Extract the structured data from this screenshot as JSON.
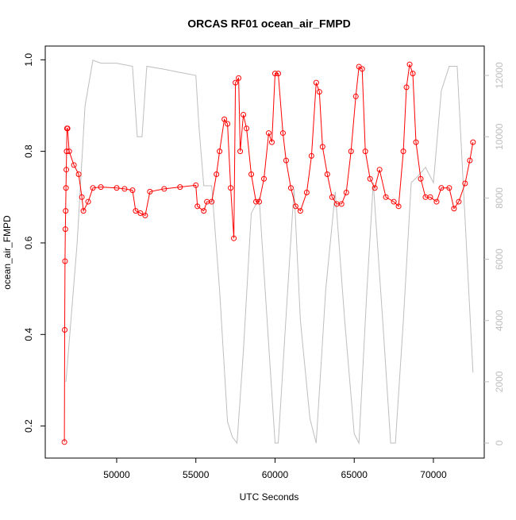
{
  "chart_data": {
    "type": "line",
    "title": "ORCAS RF01 ocean_air_FMPD",
    "x_label": "UTC Seconds",
    "y_label": "ocean_air_FMPD",
    "xlim": [
      45490,
      73210
    ],
    "ylim": [
      0.13,
      1.03
    ],
    "y2lim": [
      -490,
      12960
    ],
    "xticks": [
      50000,
      55000,
      60000,
      65000,
      70000
    ],
    "yticks": [
      0.2,
      0.4,
      0.6,
      0.8,
      {
        "value": 1,
        "label": "1.0"
      }
    ],
    "y2ticks": [
      0,
      2000,
      4000,
      6000,
      8000,
      10000,
      12000
    ],
    "series": [
      {
        "color": "#bebebe",
        "axis": "y2",
        "marker": "none",
        "x": [
          46800,
          47500,
          48000,
          48500,
          49000,
          50000,
          51000,
          51300,
          51600,
          51900,
          53000,
          54000,
          55000,
          55200,
          55500,
          56000,
          56500,
          57000,
          57300,
          57600,
          58000,
          58500,
          59000,
          59500,
          60000,
          60200,
          60800,
          61200,
          61600,
          62200,
          62600,
          63200,
          63800,
          64400,
          65000,
          65300,
          65800,
          66200,
          66800,
          67300,
          67600,
          68100,
          68600,
          69000,
          69500,
          70000,
          70500,
          71000,
          71500,
          72500
        ],
        "values": [
          2000,
          6500,
          11000,
          12500,
          12400,
          12400,
          12300,
          10000,
          10000,
          12300,
          12200,
          12100,
          12000,
          10300,
          8400,
          8400,
          5000,
          700,
          200,
          0,
          3000,
          7500,
          8000,
          4000,
          0,
          0,
          5000,
          8300,
          4000,
          800,
          0,
          5000,
          8200,
          4000,
          300,
          0,
          5000,
          8500,
          4000,
          0,
          0,
          4000,
          8500,
          8700,
          9000,
          8500,
          11500,
          12300,
          12300,
          2300
        ]
      },
      {
        "color": "#ff0000",
        "marker": "circle",
        "x": [
          46700,
          46720,
          46740,
          46760,
          46780,
          46800,
          46820,
          46840,
          46860,
          46900,
          47000,
          47300,
          47600,
          47800,
          47900,
          48200,
          48500,
          49000,
          50000,
          50500,
          51000,
          51200,
          51500,
          51800,
          52100,
          53000,
          54000,
          55000,
          55100,
          55500,
          55700,
          56000,
          56300,
          56500,
          56800,
          57000,
          57200,
          57400,
          57500,
          57700,
          57800,
          58000,
          58200,
          58500,
          58800,
          59000,
          59300,
          59600,
          59800,
          60000,
          60200,
          60500,
          60700,
          61000,
          61300,
          61600,
          62000,
          62300,
          62600,
          62800,
          63000,
          63300,
          63600,
          63900,
          64200,
          64500,
          64800,
          65100,
          65300,
          65500,
          65700,
          66000,
          66300,
          66600,
          67000,
          67500,
          67800,
          68100,
          68300,
          68500,
          68700,
          68900,
          69200,
          69500,
          69800,
          70200,
          70500,
          71000,
          71300,
          71600,
          72000,
          72300,
          72500
        ],
        "values": [
          0.165,
          0.41,
          0.56,
          0.63,
          0.67,
          0.72,
          0.76,
          0.8,
          0.85,
          0.85,
          0.8,
          0.77,
          0.75,
          0.7,
          0.67,
          0.69,
          0.72,
          0.722,
          0.72,
          0.718,
          0.715,
          0.67,
          0.665,
          0.66,
          0.712,
          0.718,
          0.722,
          0.726,
          0.68,
          0.67,
          0.69,
          0.69,
          0.75,
          0.8,
          0.87,
          0.86,
          0.72,
          0.61,
          0.95,
          0.96,
          0.8,
          0.88,
          0.85,
          0.75,
          0.69,
          0.69,
          0.74,
          0.84,
          0.82,
          0.97,
          0.97,
          0.84,
          0.78,
          0.72,
          0.68,
          0.67,
          0.71,
          0.79,
          0.95,
          0.93,
          0.81,
          0.75,
          0.7,
          0.685,
          0.685,
          0.71,
          0.8,
          0.92,
          0.985,
          0.98,
          0.8,
          0.74,
          0.72,
          0.76,
          0.7,
          0.69,
          0.68,
          0.8,
          0.94,
          0.99,
          0.97,
          0.82,
          0.74,
          0.7,
          0.7,
          0.69,
          0.72,
          0.72,
          0.675,
          0.69,
          0.73,
          0.78,
          0.82
        ]
      }
    ]
  }
}
